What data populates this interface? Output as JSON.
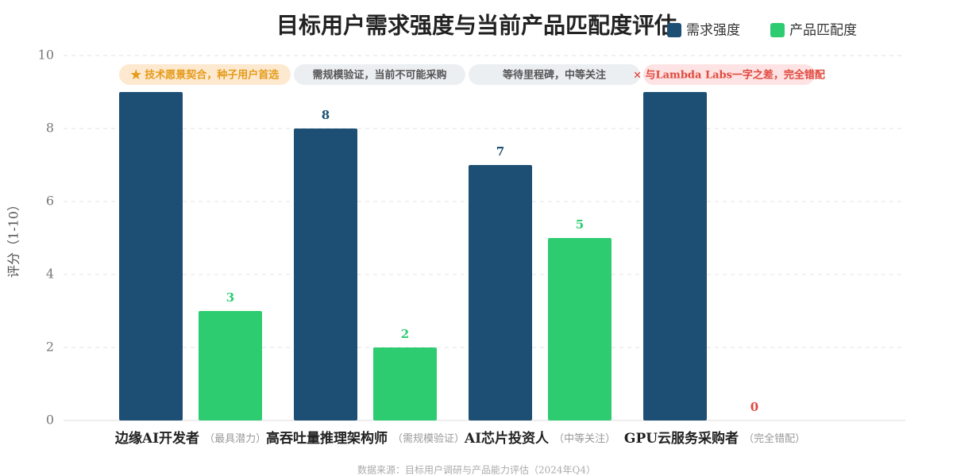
{
  "chart_data": {
    "type": "bar",
    "title": "目标用户需求强度与当前产品匹配度评估",
    "y_label": "评分（1-10）",
    "source": "数据来源：目标用户调研与产品能力评估（2024年Q4）",
    "categories": [
      "边缘AI开发者",
      "高吞吐量推理架构师",
      "AI芯片投资人",
      "GPU云服务采购者"
    ],
    "category_notes": [
      "（最具潜力）",
      "（需规模验证）",
      "（中等关注）",
      "（完全错配）"
    ],
    "annotations": [
      "★ 技术愿景契合，种子用户首选",
      "需规模验证，当前不可能采购",
      "等待里程碑，中等关注",
      "× 与Lambda Labs一字之差，完全错配"
    ],
    "series": [
      {
        "name": "需求强度",
        "color": "#1d4e73",
        "values": [
          9,
          8,
          7,
          9
        ]
      },
      {
        "name": "产品匹配度",
        "color": "#2ecc71",
        "values": [
          3,
          2,
          5,
          0
        ]
      }
    ],
    "ylim": [
      0,
      10
    ],
    "yticks": [
      0,
      2,
      4,
      6,
      8,
      10
    ],
    "grid": true,
    "legend": "top-right"
  }
}
